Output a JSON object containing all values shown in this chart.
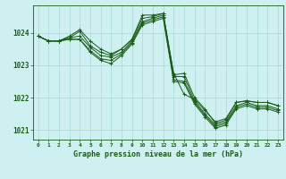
{
  "title": "Graphe pression niveau de la mer (hPa)",
  "background_color": "#cff0f0",
  "grid_color": "#a8d8d8",
  "line_color": "#1a5c1a",
  "ylim": [
    1020.7,
    1024.85
  ],
  "yticks": [
    1021,
    1022,
    1023,
    1024
  ],
  "x_labels": [
    "0",
    "1",
    "2",
    "3",
    "4",
    "5",
    "6",
    "7",
    "8",
    "9",
    "10",
    "11",
    "12",
    "13",
    "14",
    "15",
    "16",
    "17",
    "18",
    "19",
    "20",
    "21",
    "22",
    "23"
  ],
  "series": [
    [
      1023.9,
      1023.75,
      1023.75,
      1023.85,
      1024.05,
      1023.6,
      1023.4,
      1023.3,
      1023.5,
      1023.8,
      1024.55,
      1024.55,
      1024.6,
      1022.7,
      1022.75,
      1022.0,
      1021.65,
      1021.2,
      1021.3,
      1021.85,
      1021.9,
      1021.85,
      1021.85,
      1021.75
    ],
    [
      1023.9,
      1023.75,
      1023.75,
      1023.9,
      1024.1,
      1023.75,
      1023.5,
      1023.35,
      1023.5,
      1023.8,
      1024.45,
      1024.5,
      1024.6,
      1022.75,
      1022.1,
      1021.95,
      1021.6,
      1021.25,
      1021.35,
      1021.85,
      1021.9,
      1021.85,
      1021.85,
      1021.75
    ],
    [
      1023.9,
      1023.75,
      1023.75,
      1023.85,
      1023.9,
      1023.55,
      1023.3,
      1023.25,
      1023.4,
      1023.75,
      1024.35,
      1024.45,
      1024.55,
      1022.65,
      1022.65,
      1021.9,
      1021.5,
      1021.15,
      1021.25,
      1021.75,
      1021.85,
      1021.75,
      1021.75,
      1021.65
    ],
    [
      1023.9,
      1023.75,
      1023.75,
      1023.8,
      1023.8,
      1023.45,
      1023.2,
      1023.15,
      1023.35,
      1023.7,
      1024.3,
      1024.4,
      1024.5,
      1022.55,
      1022.5,
      1021.85,
      1021.45,
      1021.1,
      1021.2,
      1021.7,
      1021.8,
      1021.7,
      1021.7,
      1021.6
    ],
    [
      1023.9,
      1023.75,
      1023.75,
      1023.8,
      1023.8,
      1023.4,
      1023.15,
      1023.05,
      1023.3,
      1023.65,
      1024.25,
      1024.35,
      1024.45,
      1022.5,
      1022.45,
      1021.8,
      1021.4,
      1021.05,
      1021.15,
      1021.65,
      1021.75,
      1021.65,
      1021.65,
      1021.55
    ]
  ]
}
